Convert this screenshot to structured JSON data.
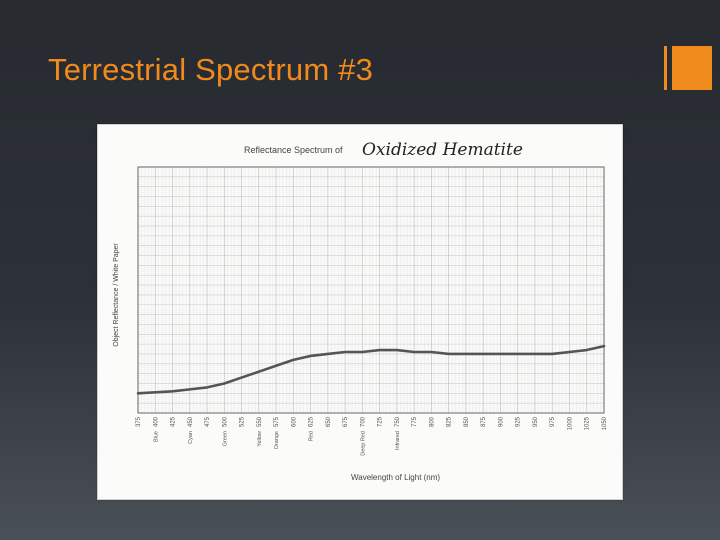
{
  "slide": {
    "title": "Terrestrial Spectrum #3",
    "accent_color": "#f08a1c"
  },
  "chart_data": {
    "type": "line",
    "title": "Reflectance Spectrum of",
    "subject": "Oxidized Hematite",
    "xlabel": "Wavelength of Light (nm)",
    "ylabel": "Object Reflectance / White Paper",
    "x_ticks": [
      "375",
      "400",
      "425",
      "450",
      "475",
      "500",
      "525",
      "550",
      "575",
      "600",
      "625",
      "650",
      "675",
      "700",
      "725",
      "750",
      "775",
      "800",
      "825",
      "850",
      "875",
      "900",
      "925",
      "950",
      "975",
      "1000",
      "1025",
      "1050"
    ],
    "color_labels": [
      {
        "x": 400,
        "text": "Blue"
      },
      {
        "x": 450,
        "text": "Cyan"
      },
      {
        "x": 500,
        "text": "Green"
      },
      {
        "x": 550,
        "text": "Yellow"
      },
      {
        "x": 575,
        "text": "Orange"
      },
      {
        "x": 625,
        "text": "Red"
      },
      {
        "x": 700,
        "text": "Deep Red"
      },
      {
        "x": 750,
        "text": "Infrared"
      }
    ],
    "series": [
      {
        "color": "#555555",
        "x": [
          375,
          400,
          425,
          450,
          475,
          500,
          525,
          550,
          575,
          600,
          625,
          650,
          675,
          700,
          725,
          750,
          775,
          800,
          825,
          850,
          875,
          900,
          925,
          950,
          975,
          1000,
          1025,
          1050
        ],
        "y": [
          0.1,
          0.105,
          0.11,
          0.12,
          0.13,
          0.15,
          0.18,
          0.21,
          0.24,
          0.27,
          0.29,
          0.3,
          0.31,
          0.31,
          0.32,
          0.32,
          0.31,
          0.31,
          0.3,
          0.3,
          0.3,
          0.3,
          0.3,
          0.3,
          0.3,
          0.31,
          0.32,
          0.34
        ]
      }
    ],
    "ylim": [
      0,
      1.25
    ],
    "grid": true
  }
}
